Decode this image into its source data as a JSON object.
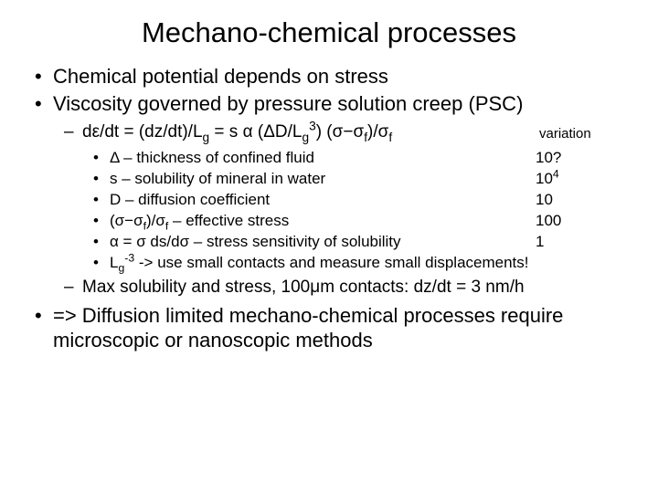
{
  "title": "Mechano-chemical processes",
  "b1": "Chemical potential depends on stress",
  "b2": "Viscosity governed by pressure solution creep (PSC)",
  "eq_prefix": "d",
  "eq_eps": "ε",
  "eq_mid1": "/dt = (dz/dt)/L",
  "eq_g1": "g",
  "eq_mid2": " = s ",
  "eq_alpha": "α",
  "eq_mid3": " (",
  "eq_Ddelta": "Δ",
  "eq_mid4": "D/L",
  "eq_g2": "g",
  "eq_exp3": "3",
  "eq_mid5": ") (",
  "eq_sigma1": "σ−σ",
  "eq_f1": "f",
  "eq_mid6": ")/",
  "eq_sigma2": "σ",
  "eq_f2": "f",
  "variation_label": "variation",
  "row1_l_a": "Δ",
  "row1_l_b": " – thickness of confined fluid",
  "row1_r": "10?",
  "row2_l": "s – solubility of mineral in water",
  "row2_r_a": "10",
  "row2_r_b": "4",
  "row3_l": "D – diffusion coefficient",
  "row3_r": "10",
  "row4_l_a": "(",
  "row4_l_b": "σ−σ",
  "row4_l_c": "f",
  "row4_l_d": ")/",
  "row4_l_e": "σ",
  "row4_l_f": "f",
  "row4_l_g": " – effective stress",
  "row4_r": "100",
  "row5_l_a": "α",
  "row5_l_b": " = ",
  "row5_l_c": "σ",
  "row5_l_d": " ds/d",
  "row5_l_e": "σ",
  "row5_l_f": " – stress sensitivity of solubility",
  "row5_r": "1",
  "row6_a": "L",
  "row6_b": "g",
  "row6_c": "-3",
  "row6_d": " -> use small contacts and measure small displacements!",
  "max_a": "Max solubility and stress, 100",
  "max_b": "μ",
  "max_c": "m contacts:  dz/dt = 3 nm/h",
  "concl": "=> Diffusion limited mechano-chemical processes require microscopic or nanoscopic methods"
}
